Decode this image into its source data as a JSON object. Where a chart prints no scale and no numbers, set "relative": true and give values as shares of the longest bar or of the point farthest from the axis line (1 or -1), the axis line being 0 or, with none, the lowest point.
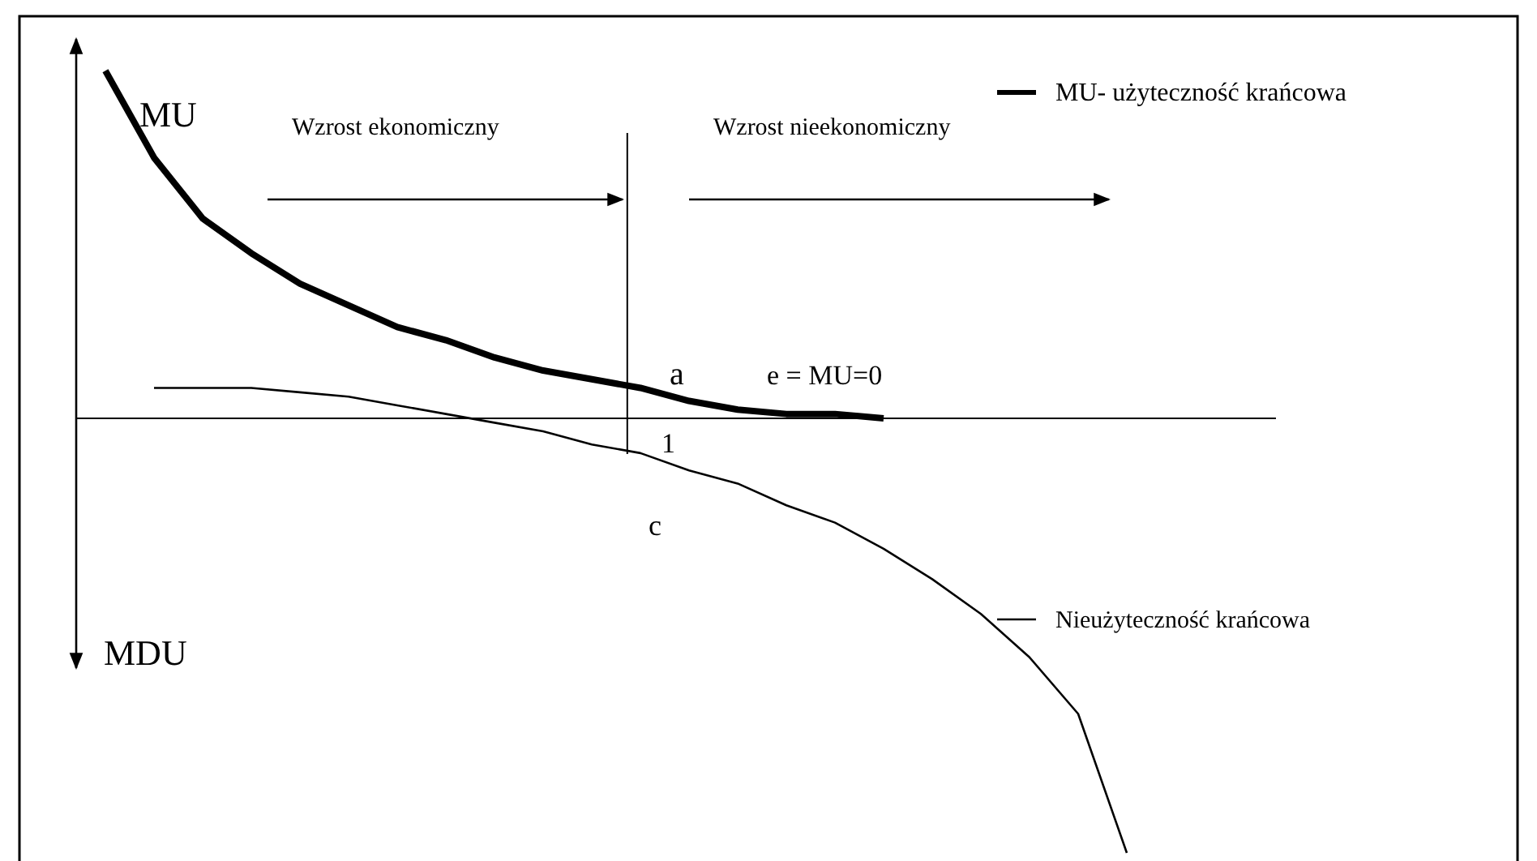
{
  "chart_data": {
    "type": "line",
    "relative": true,
    "categories": [
      null,
      null,
      null,
      null,
      null,
      null,
      null,
      null,
      null,
      null,
      null,
      null,
      null,
      null,
      null,
      null,
      null,
      null,
      null,
      null,
      null,
      null,
      null,
      null,
      null
    ],
    "series": [
      {
        "name": "MU- użyteczność krańcowa",
        "color": "#000000",
        "values": [
          0.8,
          0.6,
          0.46,
          0.38,
          0.31,
          0.26,
          0.21,
          0.18,
          0.14,
          0.11,
          0.09,
          0.07,
          0.04,
          0.02,
          0.01,
          0.01,
          0.0,
          null,
          null,
          null,
          null,
          null,
          null,
          null,
          null
        ]
      },
      {
        "name": "Nieużyteczność krańcowa",
        "color": "#000000",
        "values": [
          null,
          0.07,
          0.07,
          0.07,
          0.06,
          0.05,
          0.03,
          0.01,
          -0.01,
          -0.03,
          -0.06,
          -0.08,
          -0.12,
          -0.15,
          -0.2,
          -0.24,
          -0.3,
          -0.37,
          -0.45,
          -0.55,
          -0.68,
          -1,
          null,
          null,
          null
        ]
      }
    ],
    "legend": "right",
    "marker": "none",
    "line_style": "solid",
    "grid": false,
    "annotations": [
      "MU",
      "MDU",
      "Wzrost ekonomiczny",
      "Wzrost nieekonomiczny",
      "a",
      "e = MU=0",
      "1",
      "c"
    ]
  }
}
